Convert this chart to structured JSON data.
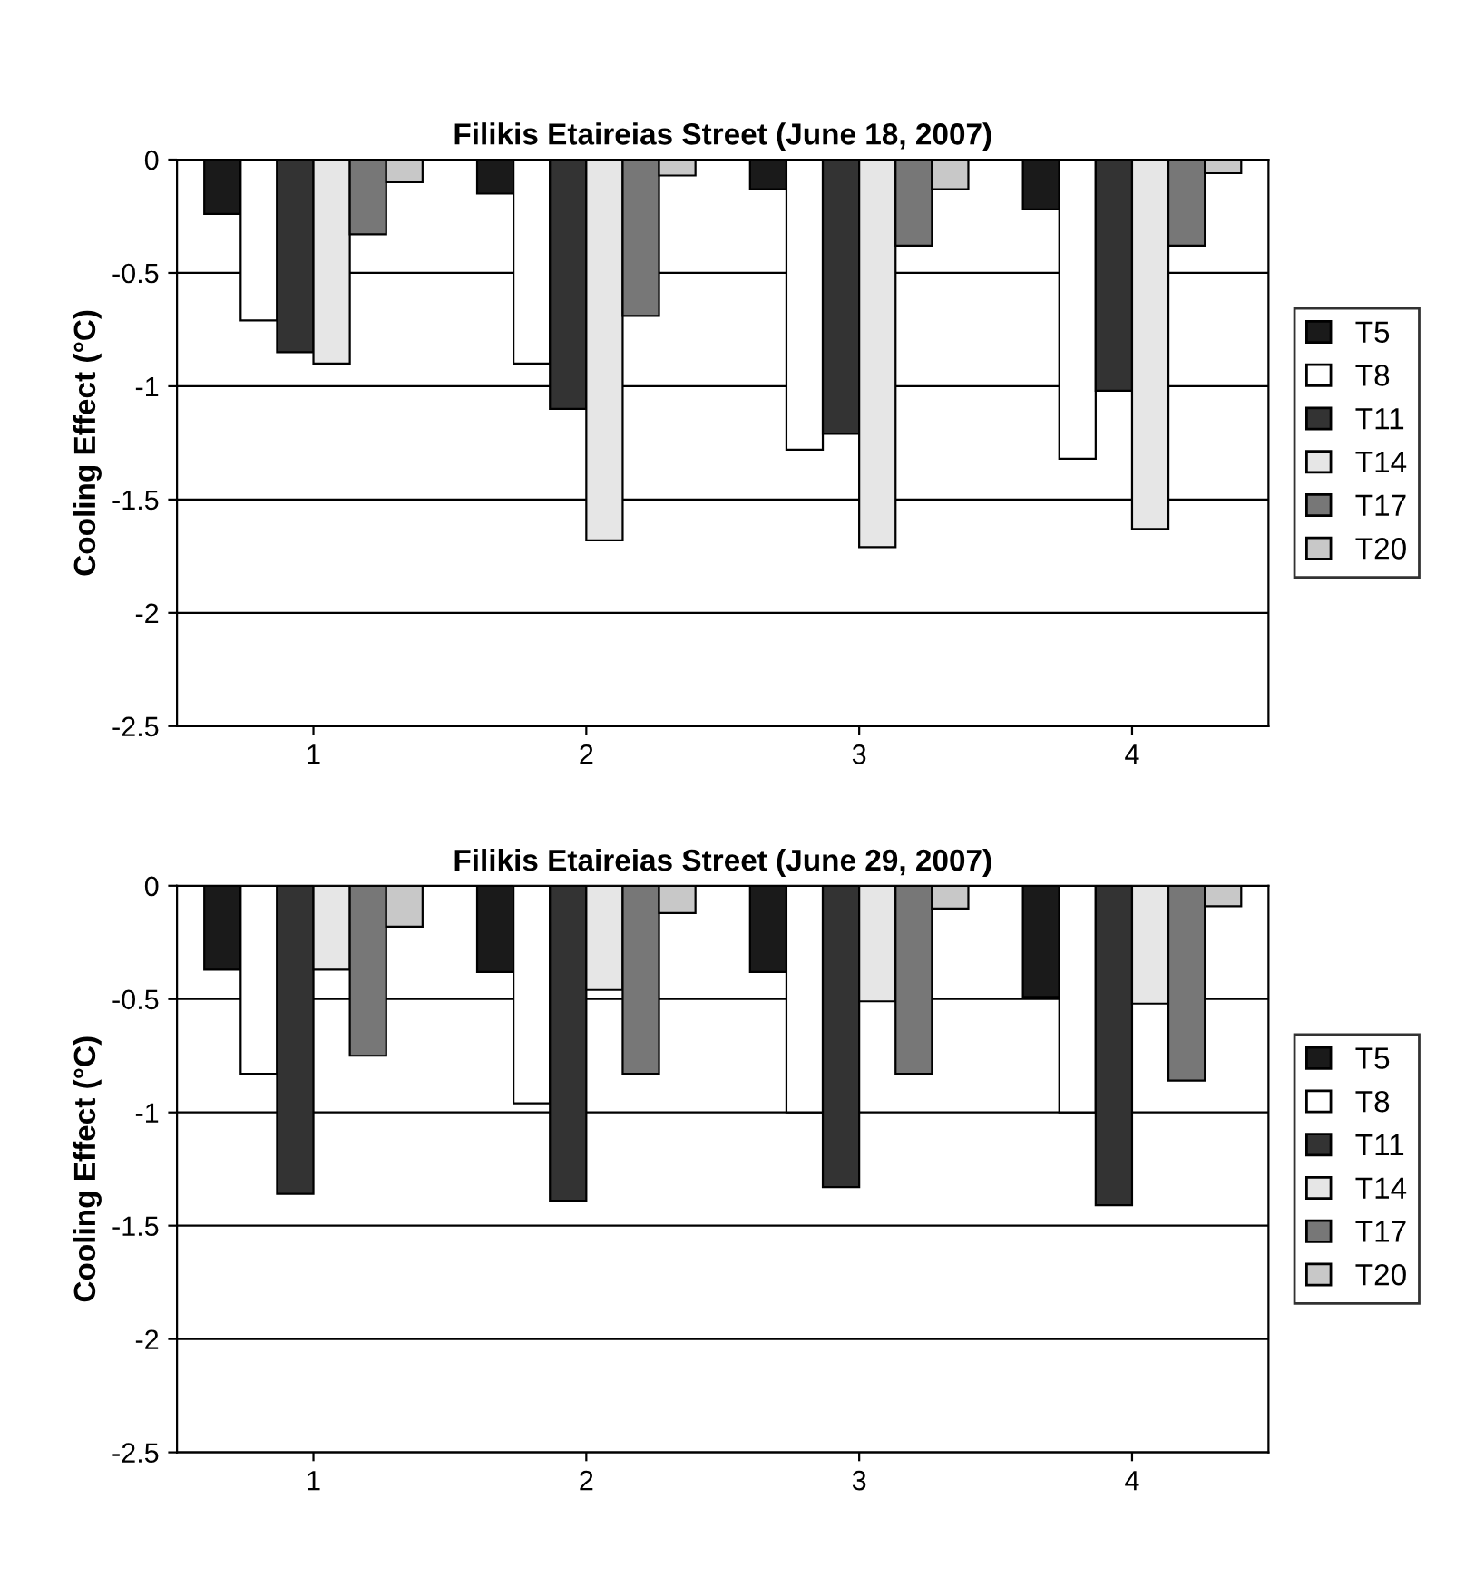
{
  "chart_data": [
    {
      "type": "bar",
      "title": "Filikis Etaireias Street (June 18, 2007)",
      "ylabel": "Cooling Effect (°C)",
      "categories": [
        "1",
        "2",
        "3",
        "4"
      ],
      "series": [
        {
          "name": "T5",
          "color": "#1a1a1a",
          "values": [
            -0.24,
            -0.15,
            -0.13,
            -0.22
          ]
        },
        {
          "name": "T8",
          "color": "#ffffff",
          "values": [
            -0.71,
            -0.9,
            -1.28,
            -1.32
          ]
        },
        {
          "name": "T11",
          "color": "#333333",
          "values": [
            -0.85,
            -1.1,
            -1.21,
            -1.02
          ]
        },
        {
          "name": "T14",
          "color": "#e6e6e6",
          "values": [
            -0.9,
            -1.68,
            -1.71,
            -1.63
          ]
        },
        {
          "name": "T17",
          "color": "#777777",
          "values": [
            -0.33,
            -0.69,
            -0.38,
            -0.38
          ]
        },
        {
          "name": "T20",
          "color": "#c8c8c8",
          "values": [
            -0.1,
            -0.07,
            -0.13,
            -0.06
          ]
        }
      ],
      "ylim": [
        -2.5,
        0
      ],
      "yticks": [
        -2.5,
        -2,
        -1.5,
        -1,
        -0.5,
        0
      ],
      "grid": "y",
      "legend": "right"
    },
    {
      "type": "bar",
      "title": "Filikis Etaireias Street (June 29, 2007)",
      "ylabel": "Cooling Effect (°C)",
      "categories": [
        "1",
        "2",
        "3",
        "4"
      ],
      "series": [
        {
          "name": "T5",
          "color": "#1a1a1a",
          "values": [
            -0.37,
            -0.38,
            -0.38,
            -0.49
          ]
        },
        {
          "name": "T8",
          "color": "#ffffff",
          "values": [
            -0.83,
            -0.96,
            -1.0,
            -1.0
          ]
        },
        {
          "name": "T11",
          "color": "#333333",
          "values": [
            -1.36,
            -1.39,
            -1.33,
            -1.41
          ]
        },
        {
          "name": "T14",
          "color": "#e6e6e6",
          "values": [
            -0.37,
            -0.46,
            -0.51,
            -0.52
          ]
        },
        {
          "name": "T17",
          "color": "#777777",
          "values": [
            -0.75,
            -0.83,
            -0.83,
            -0.86
          ]
        },
        {
          "name": "T20",
          "color": "#c8c8c8",
          "values": [
            -0.18,
            -0.12,
            -0.1,
            -0.09
          ]
        }
      ],
      "ylim": [
        -2.5,
        0
      ],
      "yticks": [
        -2.5,
        -2,
        -1.5,
        -1,
        -0.5,
        0
      ],
      "grid": "y",
      "legend": "right"
    }
  ]
}
